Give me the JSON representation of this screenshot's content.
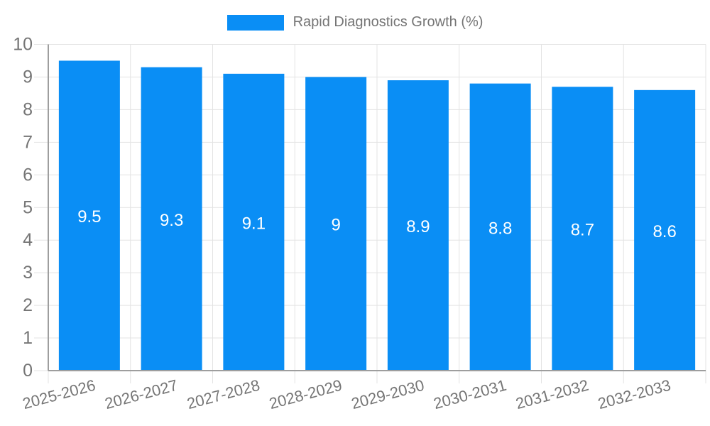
{
  "legend": {
    "label": "Rapid Diagnostics Growth (%)"
  },
  "chart_data": {
    "type": "bar",
    "title": "Rapid Diagnostics Growth (%)",
    "categories": [
      "2025-2026",
      "2026-2027",
      "2027-2028",
      "2028-2029",
      "2029-2030",
      "2030-2031",
      "2031-2032",
      "2032-2033"
    ],
    "values": [
      9.5,
      9.3,
      9.1,
      9,
      8.9,
      8.8,
      8.7,
      8.6
    ],
    "xlabel": "",
    "ylabel": "",
    "ylim": [
      0,
      10
    ],
    "y_ticks": [
      0,
      1,
      2,
      3,
      4,
      5,
      6,
      7,
      8,
      9,
      10
    ],
    "grid": true,
    "legend_position": "top-center",
    "x_label_rotation_deg": -15,
    "colors": {
      "bar": "#0a8ef5",
      "value_label": "#ffffff",
      "axis_text": "#757575",
      "grid_line": "#e3e3e3",
      "axis_line": "#9e9e9e",
      "background": "#ffffff"
    }
  }
}
